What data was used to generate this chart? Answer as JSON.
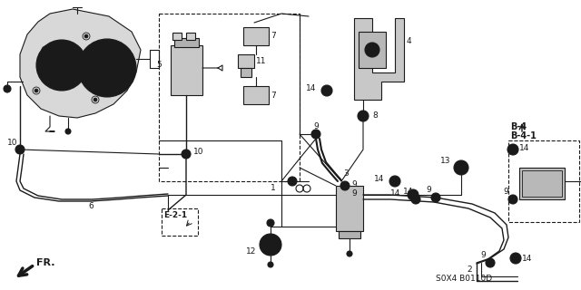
{
  "bg_color": "#ffffff",
  "line_color": "#1a1a1a",
  "diagram_code": "S0X4 B0110D",
  "fr_label": "FR.",
  "figsize": [
    6.4,
    3.2
  ],
  "dpi": 100
}
